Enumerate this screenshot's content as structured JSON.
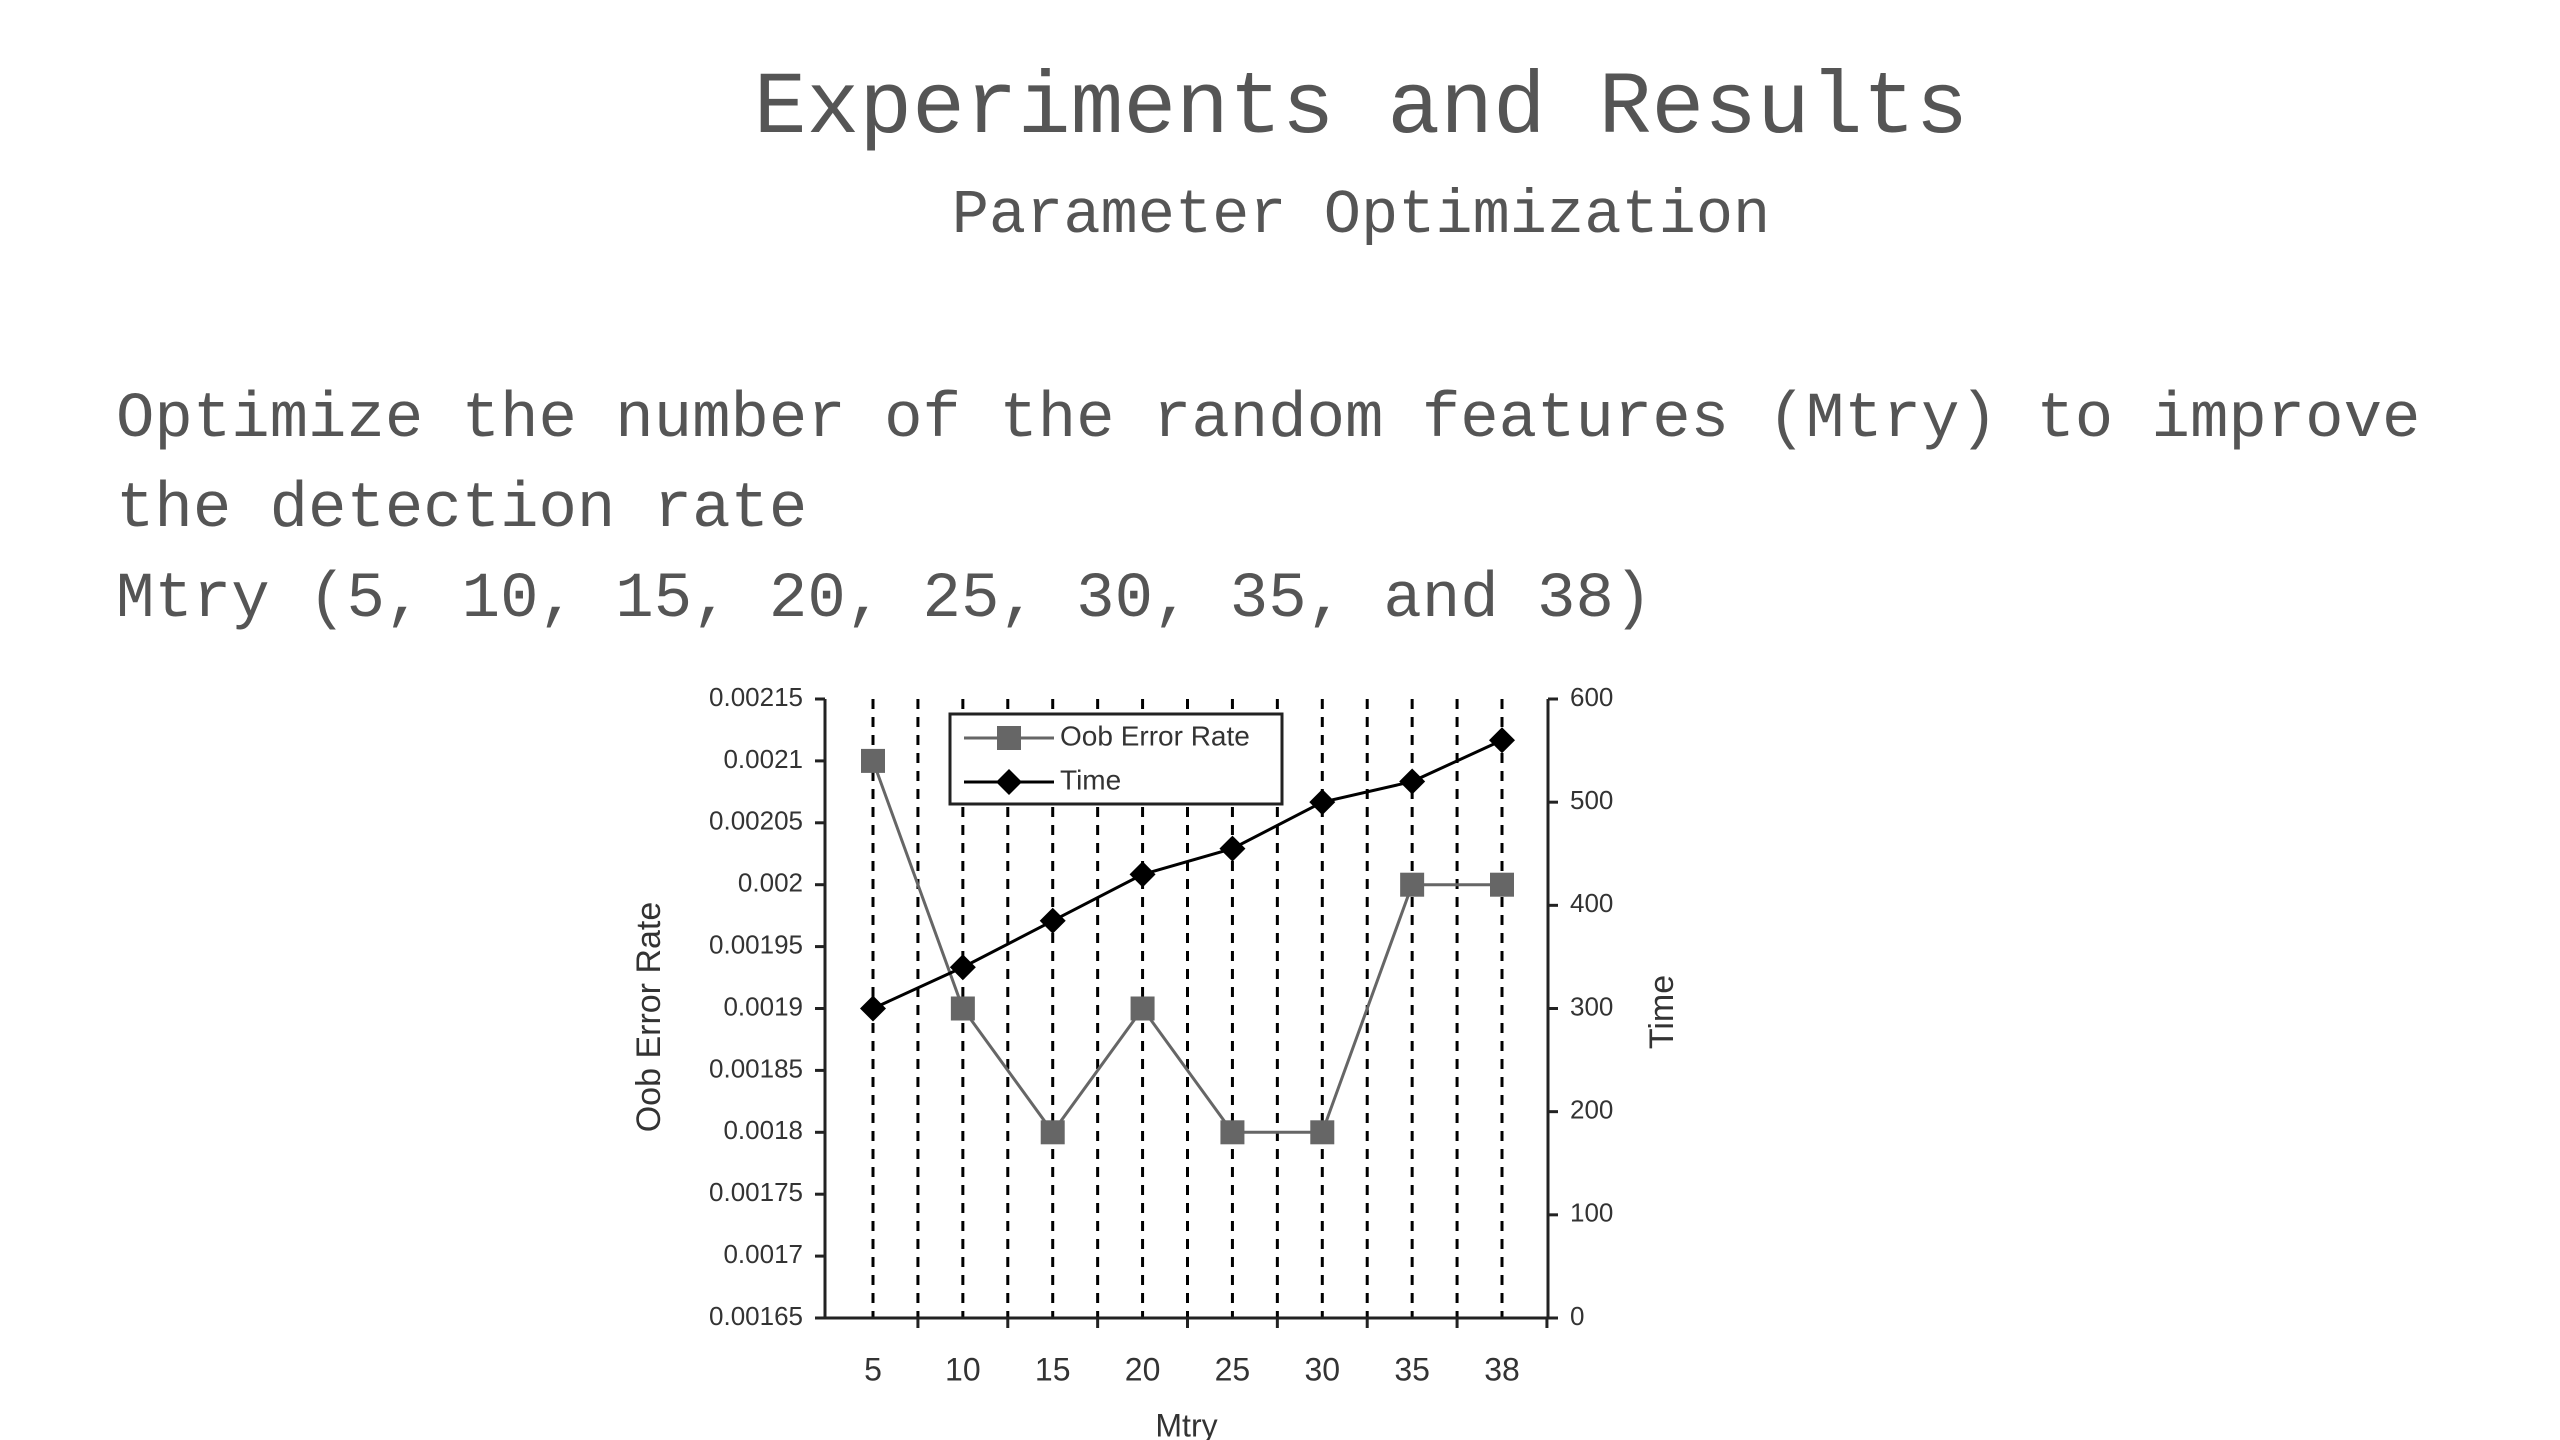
{
  "slide": {
    "title": "Experiments and Results",
    "subtitle": "Parameter Optimization",
    "bullets": [
      "Optimize the number of the random features (Mtry) to improve the detection rate",
      "Mtry (5, 10, 15, 20, 25, 30, 35, and 38)"
    ]
  },
  "chart_data": {
    "type": "line",
    "x_label": "Mtry",
    "y_label": "Oob Error Rate",
    "y2_label": "Time",
    "categories": [
      "5",
      "10",
      "15",
      "20",
      "25",
      "30",
      "35",
      "38"
    ],
    "series": [
      {
        "name": "Oob Error Rate",
        "color": "#666666",
        "marker": "square",
        "values": [
          0.0021,
          0.0019,
          0.0018,
          0.0019,
          0.0018,
          0.0018,
          0.002,
          0.002
        ]
      },
      {
        "name": "Time",
        "color": "#000000",
        "marker": "diamond",
        "axis": "y2",
        "values": [
          300,
          340,
          385,
          430,
          455,
          500,
          520,
          560
        ]
      }
    ],
    "ylim": [
      0.00165,
      0.00215
    ],
    "yticks": [
      0.00165,
      0.0017,
      0.00175,
      0.0018,
      0.00185,
      0.0019,
      0.00195,
      0.002,
      0.00205,
      0.0021,
      0.00215
    ],
    "y2lim": [
      0,
      600
    ],
    "y2ticks": [
      0,
      100,
      200,
      300,
      400,
      500,
      600
    ],
    "legend": "upper left",
    "grid": true
  }
}
